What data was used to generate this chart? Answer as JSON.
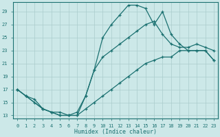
{
  "xlabel": "Humidex (Indice chaleur)",
  "bg_color": "#cce8e8",
  "grid_color": "#aacccc",
  "line_color": "#1a7070",
  "xlim": [
    -0.5,
    23.5
  ],
  "ylim": [
    12.5,
    30.5
  ],
  "xticks": [
    0,
    1,
    2,
    3,
    4,
    5,
    6,
    7,
    8,
    9,
    10,
    11,
    12,
    13,
    14,
    15,
    16,
    17,
    18,
    19,
    20,
    21,
    22,
    23
  ],
  "yticks": [
    13,
    15,
    17,
    19,
    21,
    23,
    25,
    27,
    29
  ],
  "line1_x": [
    0,
    1,
    2,
    3,
    4,
    5,
    6,
    7,
    8,
    9,
    10,
    11,
    12,
    13,
    14,
    15,
    16,
    17,
    18,
    19,
    20,
    21,
    22,
    23
  ],
  "line1_y": [
    17,
    16,
    15,
    14,
    13.5,
    13,
    13,
    13,
    16,
    20,
    25,
    27,
    28.5,
    30,
    30,
    29.5,
    27,
    29,
    25.5,
    24,
    23,
    23,
    23,
    21.5
  ],
  "line2_x": [
    0,
    1,
    3,
    4,
    5,
    6,
    7,
    8,
    9,
    10,
    11,
    12,
    13,
    14,
    15,
    16,
    17,
    18,
    19,
    20,
    21,
    22,
    23
  ],
  "line2_y": [
    17,
    16,
    14,
    13.5,
    13,
    13,
    13.5,
    16,
    20,
    22,
    23,
    24,
    25,
    26,
    27,
    27.5,
    25.5,
    24,
    23.5,
    23.5,
    24,
    23.5,
    23
  ],
  "line3_x": [
    0,
    1,
    2,
    3,
    4,
    5,
    6,
    7,
    8,
    9,
    10,
    11,
    12,
    13,
    14,
    15,
    16,
    17,
    18,
    19,
    20,
    21,
    22,
    23
  ],
  "line3_y": [
    17,
    16,
    15.5,
    14,
    13.5,
    13.5,
    13,
    13,
    14,
    15,
    16,
    17,
    18,
    19,
    20,
    21,
    21.5,
    22,
    22,
    23,
    23,
    23,
    23,
    21.5
  ]
}
